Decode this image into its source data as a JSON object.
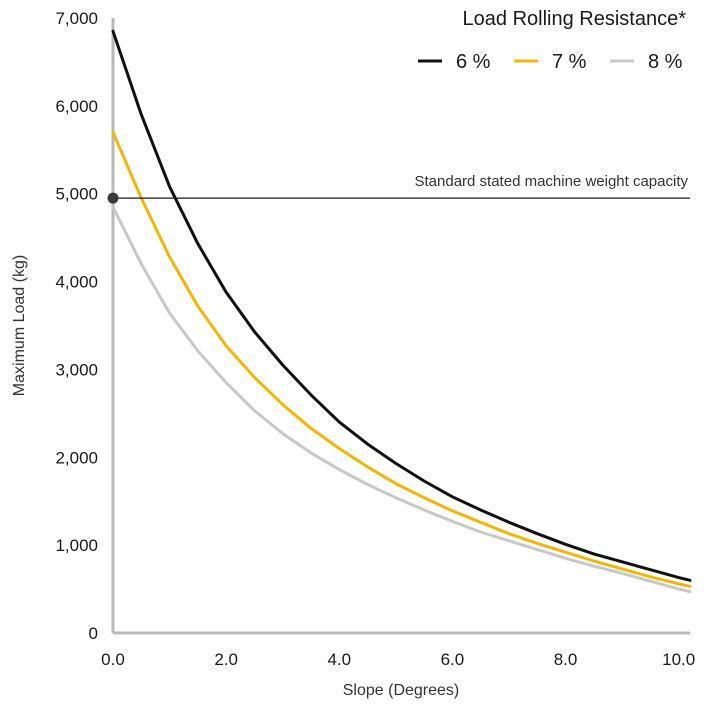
{
  "chart_data": {
    "type": "line",
    "xlabel": "Slope (Degrees)",
    "ylabel": "Maximum Load (kg)",
    "xlim": [
      0,
      10.2
    ],
    "ylim": [
      0,
      7000
    ],
    "x_ticks": [
      "0.0",
      "2.0",
      "4.0",
      "6.0",
      "8.0",
      "10.0"
    ],
    "x_tick_values": [
      0,
      2,
      4,
      6,
      8,
      10
    ],
    "y_ticks": [
      "0",
      "1,000",
      "2,000",
      "3,000",
      "4,000",
      "5,000",
      "6,000",
      "7,000"
    ],
    "y_tick_values": [
      0,
      1000,
      2000,
      3000,
      4000,
      5000,
      6000,
      7000
    ],
    "grid": false,
    "legend": {
      "title": "Load Rolling Resistance*",
      "placement": "top-right"
    },
    "series": [
      {
        "name": "6 %",
        "color": "#111111",
        "x": [
          0,
          0.5,
          1,
          1.5,
          2,
          2.5,
          3,
          3.5,
          4,
          4.5,
          5,
          5.5,
          6,
          6.5,
          7,
          7.5,
          8,
          8.5,
          9,
          9.5,
          10,
          10.2
        ],
        "y": [
          6850,
          5900,
          5080,
          4430,
          3880,
          3430,
          3050,
          2710,
          2400,
          2150,
          1930,
          1730,
          1550,
          1400,
          1260,
          1130,
          1010,
          900,
          810,
          720,
          630,
          600
        ]
      },
      {
        "name": "7 %",
        "color": "#F2B705",
        "x": [
          0,
          0.5,
          1,
          1.5,
          2,
          2.5,
          3,
          3.5,
          4,
          4.5,
          5,
          5.5,
          6,
          6.5,
          7,
          7.5,
          8,
          8.5,
          9,
          9.5,
          10,
          10.2
        ],
        "y": [
          5700,
          4950,
          4280,
          3720,
          3270,
          2910,
          2600,
          2330,
          2100,
          1890,
          1700,
          1540,
          1390,
          1260,
          1130,
          1020,
          920,
          820,
          730,
          640,
          560,
          530
        ]
      },
      {
        "name": "8 %",
        "color": "#C8C8C8",
        "x": [
          0,
          0.5,
          1,
          1.5,
          2,
          2.5,
          3,
          3.5,
          4,
          4.5,
          5,
          5.5,
          6,
          6.5,
          7,
          7.5,
          8,
          8.5,
          9,
          9.5,
          10,
          10.2
        ],
        "y": [
          4850,
          4200,
          3640,
          3210,
          2850,
          2530,
          2270,
          2050,
          1860,
          1690,
          1540,
          1400,
          1270,
          1150,
          1050,
          950,
          850,
          760,
          680,
          590,
          500,
          470
        ]
      }
    ],
    "reference_line": {
      "y": 4950,
      "label": "Standard stated machine weight capacity",
      "color": "#1a1a1a"
    }
  }
}
